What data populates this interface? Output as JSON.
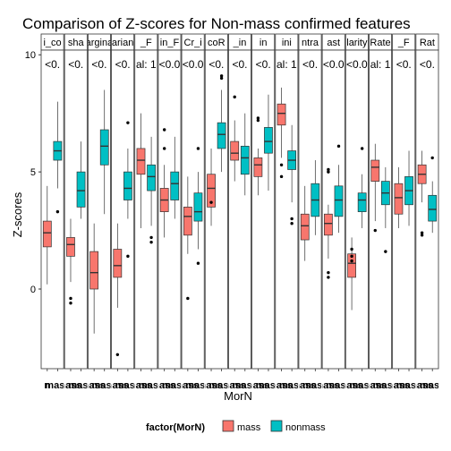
{
  "chart_data": {
    "type": "boxplot",
    "title": "Comparison of Z-scores for Non-mass confirmed features",
    "xlabel": "MorN",
    "ylabel": "Z-scores",
    "ylim": [
      -3.4,
      10.2
    ],
    "yticks": [
      0,
      5,
      10
    ],
    "legend": {
      "title": "factor(MorN)",
      "entries": [
        "mass",
        "nonmass"
      ],
      "position": "bottom"
    },
    "colors": {
      "mass": "#F8766D",
      "nonmass": "#00BFC4"
    },
    "facets": [
      {
        "strip": "i_co",
        "label": "<0.",
        "ticks": [
          "n",
          "mass"
        ],
        "mass": {
          "min": 0.2,
          "q1": 1.8,
          "median": 2.4,
          "q3": 2.9,
          "max": 4.4,
          "outliers": []
        },
        "nonmass": {
          "min": 4.3,
          "q1": 5.5,
          "median": 5.9,
          "q3": 6.3,
          "max": 8.0,
          "outliers": [
            3.3
          ]
        }
      },
      {
        "strip": "sha",
        "label": "<0.",
        "ticks": [
          "nass",
          "mass"
        ],
        "mass": {
          "min": 0.3,
          "q1": 1.4,
          "median": 1.9,
          "q3": 2.2,
          "max": 3.0,
          "outliers": [
            -0.4,
            -0.6
          ]
        },
        "nonmass": {
          "min": 3.0,
          "q1": 3.5,
          "median": 4.2,
          "q3": 5.0,
          "max": 6.3,
          "outliers": []
        }
      },
      {
        "strip": "argina",
        "label": "<0.",
        "ticks": [
          "nass",
          "mass"
        ],
        "mass": {
          "min": -1.9,
          "q1": 0.0,
          "median": 0.7,
          "q3": 1.6,
          "max": 2.8,
          "outliers": []
        },
        "nonmass": {
          "min": 3.2,
          "q1": 5.3,
          "median": 6.1,
          "q3": 6.8,
          "max": 8.5,
          "outliers": []
        }
      },
      {
        "strip": "arian",
        "label": "<0.",
        "ticks": [
          "nass",
          "mass"
        ],
        "mass": {
          "min": -0.8,
          "q1": 0.5,
          "median": 1.0,
          "q3": 1.7,
          "max": 2.8,
          "outliers": [
            -2.8
          ]
        },
        "nonmass": {
          "min": 3.0,
          "q1": 3.8,
          "median": 4.3,
          "q3": 5.0,
          "max": 6.0,
          "outliers": [
            7.1,
            1.4
          ]
        }
      },
      {
        "strip": "_F",
        "label": "al: 1",
        "ticks": [
          "nass",
          "mass"
        ],
        "mass": {
          "min": 2.6,
          "q1": 4.9,
          "median": 5.5,
          "q3": 6.0,
          "max": 7.5,
          "outliers": []
        },
        "nonmass": {
          "min": 2.7,
          "q1": 4.2,
          "median": 4.8,
          "q3": 5.3,
          "max": 6.5,
          "outliers": [
            2.0,
            2.2
          ]
        }
      },
      {
        "strip": "in_F",
        "label": "<0.0",
        "ticks": [
          "nass",
          "mass"
        ],
        "mass": {
          "min": 2.2,
          "q1": 3.3,
          "median": 3.8,
          "q3": 4.3,
          "max": 5.3,
          "outliers": [
            6.8,
            6.0
          ]
        },
        "nonmass": {
          "min": 3.0,
          "q1": 3.8,
          "median": 4.5,
          "q3": 5.0,
          "max": 6.5,
          "outliers": []
        }
      },
      {
        "strip": "Cr_i",
        "label": "<0.0",
        "ticks": [
          "nass",
          "mass"
        ],
        "mass": {
          "min": 1.5,
          "q1": 2.3,
          "median": 3.1,
          "q3": 3.5,
          "max": 4.8,
          "outliers": [
            -0.4
          ]
        },
        "nonmass": {
          "min": 1.7,
          "q1": 2.9,
          "median": 3.3,
          "q3": 4.1,
          "max": 5.0,
          "outliers": [
            6.0,
            1.1
          ]
        }
      },
      {
        "strip": "coR",
        "label": "<0.",
        "ticks": [
          "nass",
          "mass"
        ],
        "mass": {
          "min": 2.7,
          "q1": 3.5,
          "median": 4.3,
          "q3": 4.9,
          "max": 6.0,
          "outliers": [
            3.7
          ]
        },
        "nonmass": {
          "min": 5.0,
          "q1": 6.0,
          "median": 6.6,
          "q3": 7.1,
          "max": 8.5,
          "outliers": [
            9.0,
            9.1
          ]
        }
      },
      {
        "strip": "_in",
        "label": "<0.",
        "ticks": [
          "nass",
          "mass"
        ],
        "mass": {
          "min": 4.6,
          "q1": 5.5,
          "median": 5.8,
          "q3": 6.3,
          "max": 7.2,
          "outliers": [
            8.2
          ]
        },
        "nonmass": {
          "min": 4.0,
          "q1": 4.9,
          "median": 5.6,
          "q3": 6.1,
          "max": 7.5,
          "outliers": []
        }
      },
      {
        "strip": "in",
        "label": "<0.",
        "ticks": [
          "nass",
          "mass"
        ],
        "mass": {
          "min": 4.0,
          "q1": 4.8,
          "median": 5.3,
          "q3": 5.6,
          "max": 6.0,
          "outliers": [
            7.2,
            7.3
          ]
        },
        "nonmass": {
          "min": 4.2,
          "q1": 5.8,
          "median": 6.3,
          "q3": 6.9,
          "max": 8.3,
          "outliers": []
        }
      },
      {
        "strip": "ini",
        "label": "al: 1",
        "ticks": [
          "nass",
          "mass"
        ],
        "mass": {
          "min": 5.6,
          "q1": 7.0,
          "median": 7.5,
          "q3": 7.9,
          "max": 8.6,
          "outliers": [
            4.8,
            5.3
          ]
        },
        "nonmass": {
          "min": 3.7,
          "q1": 5.1,
          "median": 5.5,
          "q3": 5.9,
          "max": 7.0,
          "outliers": [
            3.0,
            2.8
          ]
        }
      },
      {
        "strip": "ntra",
        "label": "<0.",
        "ticks": [
          "nass",
          "mass"
        ],
        "mass": {
          "min": 1.2,
          "q1": 2.1,
          "median": 2.7,
          "q3": 3.2,
          "max": 4.4,
          "outliers": []
        },
        "nonmass": {
          "min": 2.3,
          "q1": 3.1,
          "median": 3.8,
          "q3": 4.5,
          "max": 5.5,
          "outliers": []
        }
      },
      {
        "strip": "ast",
        "label": "<0.0",
        "ticks": [
          "nass",
          "mass"
        ],
        "mass": {
          "min": 1.3,
          "q1": 2.3,
          "median": 2.8,
          "q3": 3.2,
          "max": 3.6,
          "outliers": [
            5.1,
            5.0,
            0.7,
            0.5
          ]
        },
        "nonmass": {
          "min": 2.4,
          "q1": 3.1,
          "median": 3.8,
          "q3": 4.4,
          "max": 5.3,
          "outliers": [
            6.1
          ]
        }
      },
      {
        "strip": "larity",
        "label": "<0.0",
        "ticks": [
          "nass",
          "mass"
        ],
        "mass": {
          "min": -0.9,
          "q1": 0.5,
          "median": 1.1,
          "q3": 1.5,
          "max": 2.2,
          "outliers": [
            1.7,
            1.4,
            1.2
          ]
        },
        "nonmass": {
          "min": 2.6,
          "q1": 3.3,
          "median": 3.8,
          "q3": 4.1,
          "max": 4.9,
          "outliers": [
            6.0
          ]
        }
      },
      {
        "strip": "Rate",
        "label": "al: 1",
        "ticks": [
          "nass",
          "mass"
        ],
        "mass": {
          "min": 2.9,
          "q1": 4.6,
          "median": 5.2,
          "q3": 5.5,
          "max": 6.2,
          "outliers": [
            2.5
          ]
        },
        "nonmass": {
          "min": 2.6,
          "q1": 3.6,
          "median": 4.1,
          "q3": 4.6,
          "max": 5.2,
          "outliers": [
            1.6
          ]
        }
      },
      {
        "strip": "_F",
        "label": "<0.",
        "ticks": [
          "nass",
          "mass"
        ],
        "mass": {
          "min": 2.6,
          "q1": 3.2,
          "median": 3.9,
          "q3": 4.5,
          "max": 5.2,
          "outliers": []
        },
        "nonmass": {
          "min": 2.7,
          "q1": 3.6,
          "median": 4.2,
          "q3": 4.8,
          "max": 5.9,
          "outliers": []
        }
      },
      {
        "strip": "Rat",
        "label": "<0.",
        "ticks": [
          "nass",
          "mass"
        ],
        "mass": {
          "min": 3.7,
          "q1": 4.5,
          "median": 4.9,
          "q3": 5.3,
          "max": 5.9,
          "outliers": [
            2.3,
            2.4
          ]
        },
        "nonmass": {
          "min": 2.4,
          "q1": 2.9,
          "median": 3.4,
          "q3": 4.0,
          "max": 4.6,
          "outliers": [
            5.6
          ]
        }
      }
    ]
  }
}
